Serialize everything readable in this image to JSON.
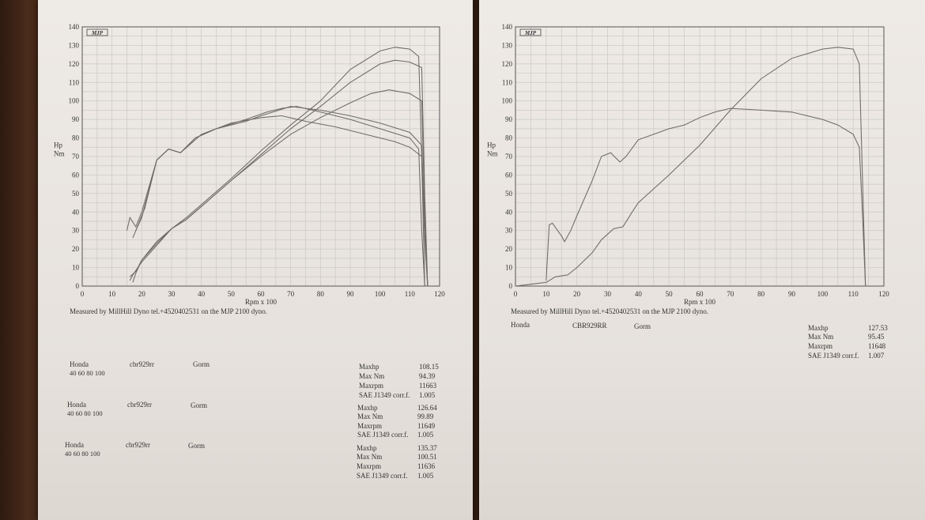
{
  "chart_data": [
    {
      "type": "line",
      "logo": "MJP",
      "ylabel": [
        "Hp",
        "Nm"
      ],
      "xlabel": "Rpm x 100",
      "xlim": [
        0,
        120
      ],
      "ylim": [
        0,
        140
      ],
      "x_ticks": [
        "0",
        "10",
        "20",
        "30",
        "40",
        "50",
        "60",
        "70",
        "80",
        "90",
        "100",
        "110",
        "120"
      ],
      "y_ticks": [
        "0",
        "10",
        "20",
        "30",
        "40",
        "50",
        "60",
        "70",
        "80",
        "90",
        "100",
        "110",
        "120",
        "130",
        "140"
      ],
      "grid": true,
      "footer": "Measured by MillHill Dyno tel.+4520402531 on the MJP 2100 dyno.",
      "series": [
        {
          "id": "run1-hp",
          "points": [
            [
              16,
              3
            ],
            [
              17,
              6
            ],
            [
              20,
              13
            ],
            [
              25,
              22
            ],
            [
              30,
              31
            ],
            [
              35,
              36
            ],
            [
              40,
              43
            ],
            [
              50,
              57
            ],
            [
              60,
              70
            ],
            [
              70,
              82
            ],
            [
              80,
              91
            ],
            [
              90,
              99
            ],
            [
              97,
              104
            ],
            [
              103,
              106
            ],
            [
              110,
              104
            ],
            [
              114,
              100
            ],
            [
              115,
              40
            ],
            [
              116,
              0
            ]
          ]
        },
        {
          "id": "run1-nm",
          "points": [
            [
              15,
              30
            ],
            [
              16,
              37
            ],
            [
              18,
              32
            ],
            [
              20,
              40
            ],
            [
              25,
              68
            ],
            [
              29,
              74
            ],
            [
              33,
              72
            ],
            [
              38,
              79
            ],
            [
              40,
              82
            ],
            [
              50,
              88
            ],
            [
              60,
              91
            ],
            [
              67,
              92
            ],
            [
              75,
              89
            ],
            [
              85,
              86
            ],
            [
              95,
              82
            ],
            [
              105,
              78
            ],
            [
              110,
              75
            ],
            [
              114,
              70
            ],
            [
              115,
              25
            ],
            [
              116,
              0
            ]
          ]
        },
        {
          "id": "run2-hp",
          "points": [
            [
              16,
              5
            ],
            [
              18,
              8
            ],
            [
              20,
              14
            ],
            [
              25,
              23
            ],
            [
              30,
              31
            ],
            [
              35,
              36
            ],
            [
              40,
              43
            ],
            [
              50,
              57
            ],
            [
              60,
              71
            ],
            [
              70,
              85
            ],
            [
              80,
              97
            ],
            [
              90,
              110
            ],
            [
              100,
              120
            ],
            [
              105,
              122
            ],
            [
              110,
              121
            ],
            [
              114,
              118
            ],
            [
              115,
              50
            ],
            [
              116,
              0
            ]
          ]
        },
        {
          "id": "run2-nm",
          "points": [
            [
              17,
              26
            ],
            [
              18,
              30
            ],
            [
              21,
              42
            ],
            [
              25,
              68
            ],
            [
              29,
              74
            ],
            [
              33,
              72
            ],
            [
              38,
              80
            ],
            [
              45,
              85
            ],
            [
              55,
              89
            ],
            [
              60,
              92
            ],
            [
              70,
              97
            ],
            [
              80,
              95
            ],
            [
              90,
              92
            ],
            [
              100,
              88
            ],
            [
              110,
              83
            ],
            [
              114,
              76
            ],
            [
              115,
              30
            ],
            [
              116,
              0
            ]
          ]
        },
        {
          "id": "run3-hp",
          "points": [
            [
              17,
              2
            ],
            [
              18,
              7
            ],
            [
              20,
              14
            ],
            [
              25,
              24
            ],
            [
              30,
              31
            ],
            [
              35,
              37
            ],
            [
              40,
              44
            ],
            [
              50,
              58
            ],
            [
              60,
              73
            ],
            [
              70,
              87
            ],
            [
              80,
              100
            ],
            [
              90,
              117
            ],
            [
              100,
              127
            ],
            [
              105,
              129
            ],
            [
              110,
              128
            ],
            [
              113,
              124
            ],
            [
              114,
              70
            ],
            [
              115,
              0
            ]
          ]
        },
        {
          "id": "run3-nm",
          "points": [
            [
              18,
              30
            ],
            [
              20,
              37
            ],
            [
              25,
              68
            ],
            [
              29,
              74
            ],
            [
              33,
              72
            ],
            [
              38,
              80
            ],
            [
              45,
              85
            ],
            [
              55,
              90
            ],
            [
              62,
              94
            ],
            [
              67,
              96
            ],
            [
              72,
              97
            ],
            [
              80,
              94
            ],
            [
              90,
              90
            ],
            [
              100,
              85
            ],
            [
              110,
              80
            ],
            [
              113,
              74
            ],
            [
              114,
              30
            ],
            [
              115,
              0
            ]
          ]
        }
      ],
      "runs": [
        {
          "make": "Honda",
          "model": "cbr929rr",
          "owner": "Gorm",
          "gears": "40 60 80 100",
          "labels": [
            "Maxhp",
            "Max Nm",
            "Maxrpm",
            "SAE J1349 corr.f."
          ],
          "values": [
            "108.15",
            "94.39",
            "11663",
            "1.005"
          ]
        },
        {
          "make": "Honda",
          "model": "cbr929rr",
          "owner": "Gorm",
          "gears": "40 60 80 100",
          "labels": [
            "Maxhp",
            "Max Nm",
            "Maxrpm",
            "SAE J1349 corr.f."
          ],
          "values": [
            "126.64",
            "99.89",
            "11649",
            "1.005"
          ]
        },
        {
          "make": "Honda",
          "model": "cbr929rr",
          "owner": "Gorm",
          "gears": "40 60 80 100",
          "labels": [
            "Maxhp",
            "Max Nm",
            "Maxrpm",
            "SAE J1349 corr.f."
          ],
          "values": [
            "135.37",
            "100.51",
            "11636",
            "1.005"
          ]
        }
      ]
    },
    {
      "type": "line",
      "logo": "MJP",
      "ylabel": [
        "Hp",
        "Nm"
      ],
      "xlabel": "Rpm x 100",
      "xlim": [
        0,
        120
      ],
      "ylim": [
        0,
        140
      ],
      "x_ticks": [
        "0",
        "10",
        "20",
        "30",
        "40",
        "50",
        "60",
        "70",
        "80",
        "90",
        "100",
        "110",
        "120"
      ],
      "y_ticks": [
        "0",
        "10",
        "20",
        "30",
        "40",
        "50",
        "60",
        "70",
        "80",
        "90",
        "100",
        "110",
        "120",
        "130",
        "140"
      ],
      "grid": true,
      "footer": "Measured by MillHill Dyno tel.+4520402531 on the MJP 2100 dyno.",
      "series": [
        {
          "id": "hp",
          "points": [
            [
              0,
              0
            ],
            [
              5,
              1
            ],
            [
              10,
              2
            ],
            [
              13,
              5
            ],
            [
              17,
              6
            ],
            [
              20,
              10
            ],
            [
              25,
              18
            ],
            [
              28,
              25
            ],
            [
              32,
              31
            ],
            [
              35,
              32
            ],
            [
              38,
              40
            ],
            [
              40,
              45
            ],
            [
              50,
              60
            ],
            [
              60,
              76
            ],
            [
              70,
              95
            ],
            [
              80,
              112
            ],
            [
              90,
              123
            ],
            [
              100,
              128
            ],
            [
              105,
              129
            ],
            [
              110,
              128
            ],
            [
              112,
              120
            ],
            [
              113,
              60
            ],
            [
              114,
              0
            ]
          ]
        },
        {
          "id": "nm",
          "points": [
            [
              10,
              3
            ],
            [
              11,
              33
            ],
            [
              12,
              34
            ],
            [
              15,
              27
            ],
            [
              16,
              24
            ],
            [
              18,
              30
            ],
            [
              20,
              38
            ],
            [
              25,
              57
            ],
            [
              28,
              70
            ],
            [
              31,
              72
            ],
            [
              34,
              67
            ],
            [
              36,
              70
            ],
            [
              40,
              79
            ],
            [
              50,
              85
            ],
            [
              55,
              87
            ],
            [
              60,
              91
            ],
            [
              65,
              94
            ],
            [
              70,
              96
            ],
            [
              80,
              95
            ],
            [
              90,
              94
            ],
            [
              100,
              90
            ],
            [
              105,
              87
            ],
            [
              110,
              82
            ],
            [
              112,
              75
            ],
            [
              113,
              40
            ],
            [
              114,
              0
            ]
          ]
        }
      ],
      "run": {
        "make": "Honda",
        "model": "CBR929RR",
        "owner": "Gorm",
        "labels": [
          "Maxhp",
          "Max Nm",
          "Maxrpm",
          "SAE J1349 corr.f."
        ],
        "values": [
          "127.53",
          "95.45",
          "11648",
          "1.007"
        ]
      }
    }
  ]
}
